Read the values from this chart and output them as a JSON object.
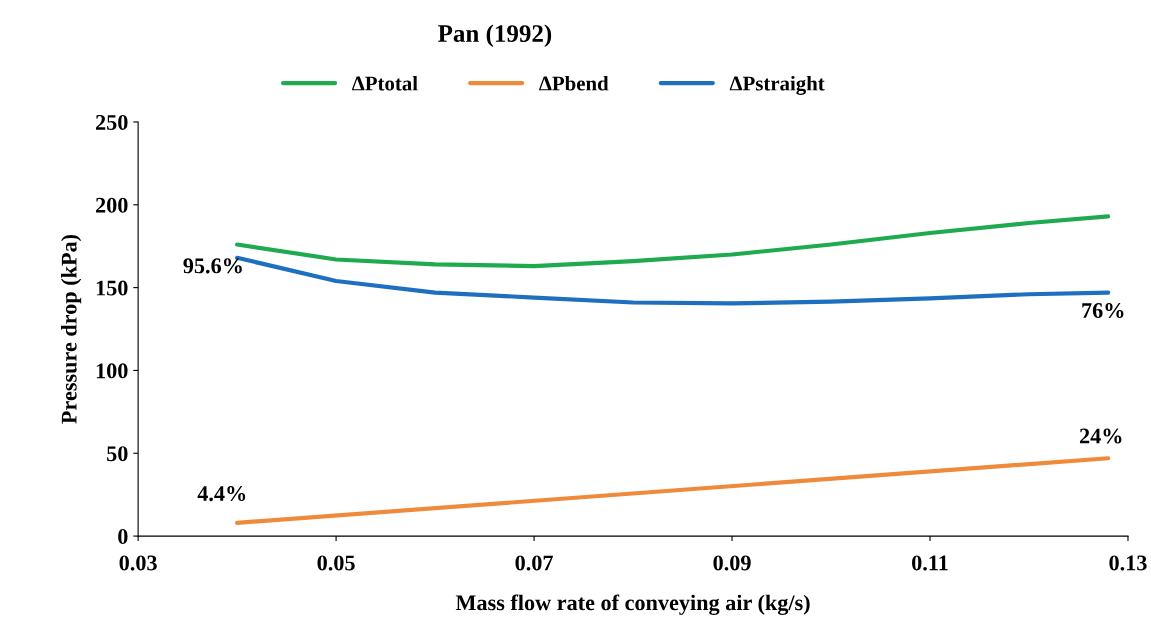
{
  "chart_data": {
    "type": "line",
    "title": "Pan (1992)",
    "xlabel": "Mass flow rate of conveying air (kg/s)",
    "ylabel": "Pressure drop (kPa)",
    "series": [
      {
        "name": "ΔPtotal",
        "color": "#1faa4f",
        "x": [
          0.04,
          0.05,
          0.06,
          0.07,
          0.08,
          0.09,
          0.1,
          0.11,
          0.12,
          0.128
        ],
        "values": [
          176,
          167,
          164,
          163,
          166,
          170,
          176,
          183,
          189,
          193
        ]
      },
      {
        "name": "ΔPbend",
        "color": "#f08a3b",
        "x": [
          0.04,
          0.128
        ],
        "values": [
          8,
          47
        ]
      },
      {
        "name": "ΔPstraight",
        "color": "#1f6fc1",
        "x": [
          0.04,
          0.05,
          0.06,
          0.07,
          0.08,
          0.09,
          0.1,
          0.11,
          0.12,
          0.128
        ],
        "values": [
          168,
          154,
          147,
          144,
          141,
          140.5,
          141.5,
          143.5,
          146,
          147
        ]
      }
    ],
    "annotations": [
      "95.6%",
      "4.4%",
      "76%",
      "24%"
    ],
    "xlim": [
      0.03,
      0.13
    ],
    "xticks": [
      0.03,
      0.05,
      0.07,
      0.09,
      0.11,
      0.13
    ],
    "ylim": [
      0,
      250
    ],
    "yticks": [
      0,
      50,
      100,
      150,
      200,
      250
    ],
    "grid": false,
    "legend": "top",
    "marker": "none",
    "line_style": "solid"
  }
}
